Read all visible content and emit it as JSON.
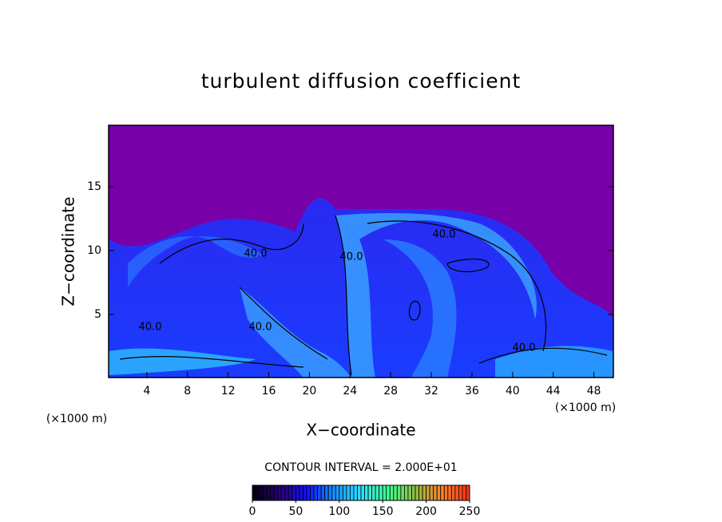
{
  "chart_data": {
    "type": "contour",
    "title": "turbulent diffusion coefficient",
    "x_label": "X−coordinate",
    "y_label": "Z−coordinate",
    "x_unit_labels": [
      "(×1000 m)",
      "(×1000 m)"
    ],
    "xlim": [
      0,
      50
    ],
    "ylim": [
      0,
      20
    ],
    "xticks": [
      4,
      8,
      12,
      16,
      20,
      24,
      28,
      32,
      36,
      40,
      44,
      48
    ],
    "yticks": [
      5,
      10,
      15
    ],
    "contour_interval_label": "CONTOUR INTERVAL = 2.000E+01",
    "contour_labels": [
      "40.0",
      "40.0",
      "40.0",
      "40.0",
      "40.0",
      "40.0"
    ],
    "colorbar": {
      "clim": [
        0,
        250
      ],
      "ticks": [
        0,
        50,
        100,
        150,
        200,
        250
      ],
      "colormap": [
        "#000010",
        "#2a0070",
        "#1010ff",
        "#1890ff",
        "#30e0ff",
        "#40ff90",
        "#90c040",
        "#ff8030",
        "#ff3010"
      ]
    }
  }
}
